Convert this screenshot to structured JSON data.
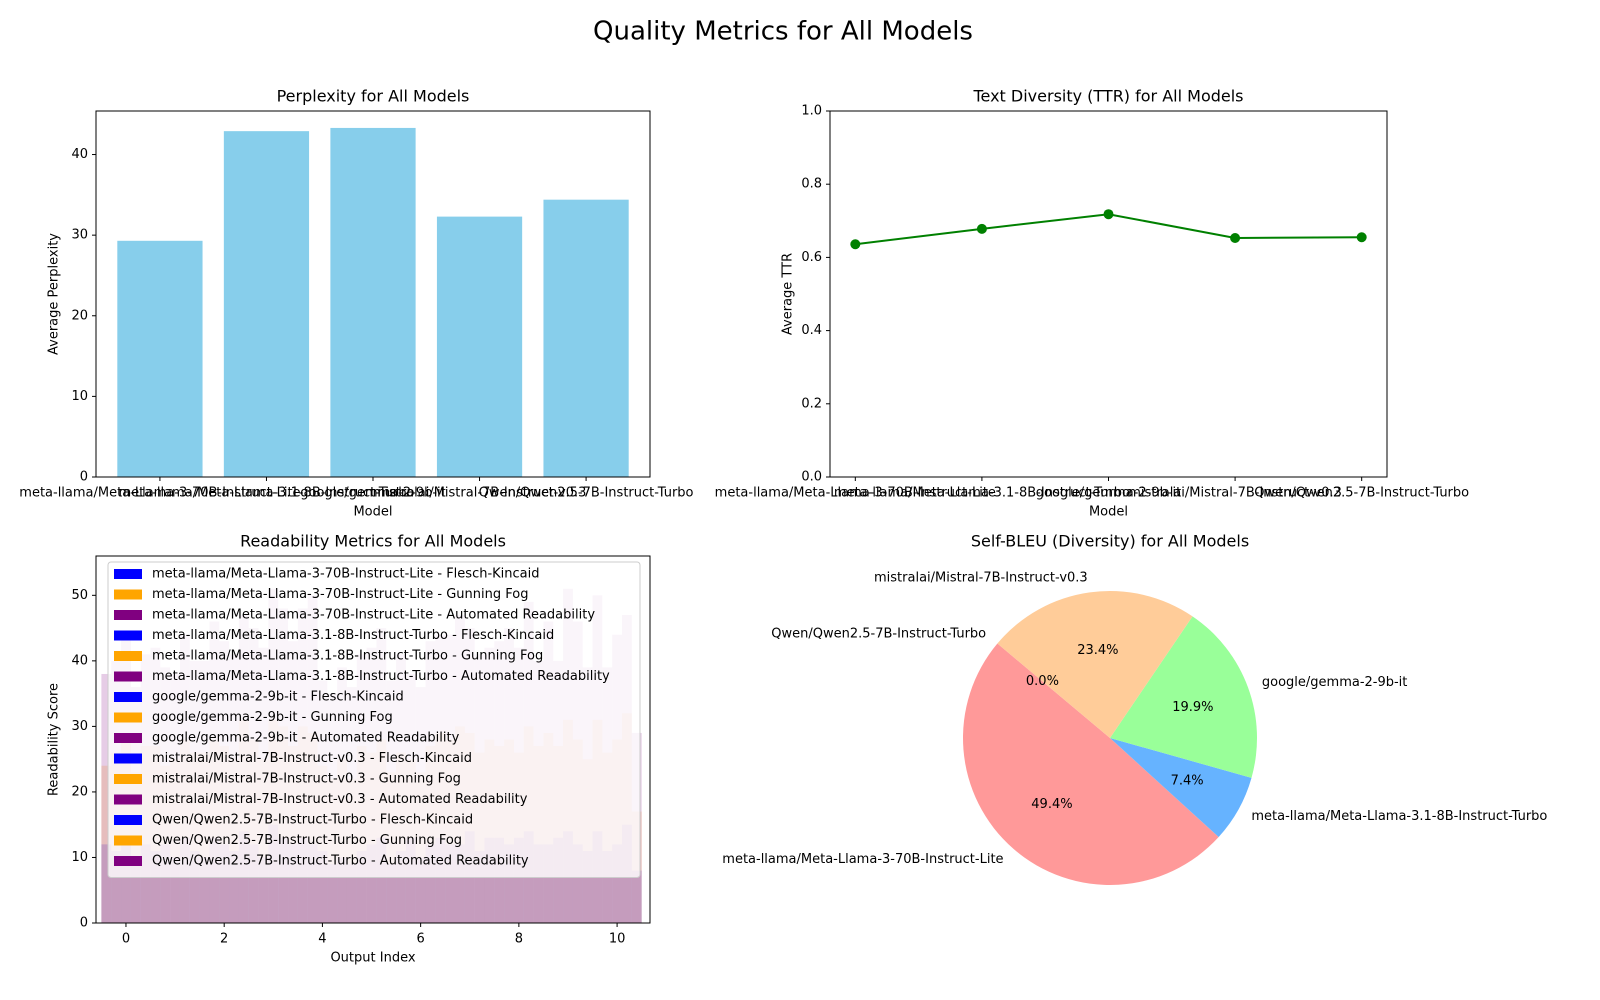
{
  "title": "Quality Metrics for All Models",
  "chart_data": [
    {
      "type": "bar",
      "title": "Perplexity for All Models",
      "xlabel": "Model",
      "ylabel": "Average Perplexity",
      "categories": [
        "meta-llama/Meta-Llama-3-70B-Instruct-Lite",
        "meta-llama/Meta-Llama-3.1-8B-Instruct-Turbo",
        "google/gemma-2-9b-it",
        "mistralai/Mistral-7B-Instruct-v0.3",
        "Qwen/Qwen2.5-7B-Instruct-Turbo"
      ],
      "values": [
        29.3,
        42.9,
        43.3,
        32.3,
        34.4
      ],
      "color": "#87ceeb",
      "ylim": [
        0,
        45.4
      ],
      "yticks": [
        0,
        10,
        20,
        30,
        40
      ]
    },
    {
      "type": "line",
      "title": "Text Diversity (TTR) for All Models",
      "xlabel": "Model",
      "ylabel": "Average TTR",
      "categories": [
        "meta-llama/Meta-Llama-3-70B-Instruct-Lite",
        "meta-llama/Meta-Llama-3.1-8B-Instruct-Turbo",
        "google/gemma-2-9b-it",
        "mistralai/Mistral-7B-Instruct-v0.3",
        "Qwen/Qwen2.5-7B-Instruct-Turbo"
      ],
      "values": [
        0.636,
        0.678,
        0.718,
        0.653,
        0.655
      ],
      "color": "#008000",
      "ylim": [
        0,
        1
      ],
      "yticks": [
        {
          "value": 0,
          "label": "0.0"
        },
        0.2,
        0.4,
        0.6,
        0.8,
        {
          "value": 1,
          "label": "1.0"
        }
      ]
    },
    {
      "type": "overlap-bar",
      "title": "Readability Metrics for All Models",
      "xlabel": "Output Index",
      "ylabel": "Readability Score",
      "x": [
        0,
        1,
        2,
        3,
        4,
        5,
        6,
        7,
        8,
        9,
        10
      ],
      "alpha": 0.2,
      "legend": "upper left",
      "xlim": [
        -0.61,
        10.67
      ],
      "xticks": [
        0,
        2,
        4,
        6,
        8,
        10
      ],
      "ylim": [
        0,
        56
      ],
      "yticks": [
        0,
        10,
        20,
        30,
        40,
        50
      ],
      "series": [
        {
          "name": "meta-llama/Meta-Llama-3-70B-Instruct-Lite - Flesch-Kincaid",
          "color": "#0000ff",
          "values": [
            12,
            11,
            10,
            12,
            13,
            9,
            11,
            12,
            13,
            12,
            14
          ]
        },
        {
          "name": "meta-llama/Meta-Llama-3-70B-Instruct-Lite - Gunning Fog",
          "color": "#ffa500",
          "values": [
            24,
            27,
            26,
            28,
            30,
            22,
            26,
            28,
            27,
            29,
            31
          ]
        },
        {
          "name": "meta-llama/Meta-Llama-3-70B-Instruct-Lite - Automated Readability",
          "color": "#800080",
          "values": [
            38,
            42,
            40,
            45,
            48,
            36,
            41,
            44,
            43,
            46,
            50
          ]
        },
        {
          "name": "meta-llama/Meta-Llama-3.1-8B-Instruct-Turbo - Flesch-Kincaid",
          "color": "#0000ff",
          "values": [
            11,
            12,
            13,
            10,
            12,
            11,
            13,
            12,
            12,
            13,
            11
          ]
        },
        {
          "name": "meta-llama/Meta-Llama-3.1-8B-Instruct-Turbo - Gunning Fog",
          "color": "#ffa500",
          "values": [
            26,
            24,
            28,
            25,
            29,
            27,
            25,
            30,
            28,
            27,
            26
          ]
        },
        {
          "name": "meta-llama/Meta-Llama-3.1-8B-Instruct-Turbo - Automated Readability",
          "color": "#800080",
          "values": [
            40,
            39,
            46,
            42,
            50,
            41,
            38,
            47,
            45,
            40,
            39
          ]
        },
        {
          "name": "google/gemma-2-9b-it - Flesch-Kincaid",
          "color": "#0000ff",
          "values": [
            13,
            10,
            12,
            15,
            11,
            12,
            10,
            14,
            13,
            14,
            12
          ]
        },
        {
          "name": "google/gemma-2-9b-it - Gunning Fog",
          "color": "#ffa500",
          "values": [
            29,
            25,
            27,
            31,
            24,
            26,
            23,
            29,
            26,
            31,
            28
          ]
        },
        {
          "name": "google/gemma-2-9b-it - Automated Readability",
          "color": "#800080",
          "values": [
            44,
            38,
            43,
            51,
            37,
            42,
            36,
            45,
            42,
            51,
            44
          ]
        },
        {
          "name": "mistralai/Mistral-7B-Instruct-v0.3 - Flesch-Kincaid",
          "color": "#0000ff",
          "values": [
            10,
            13,
            11,
            13,
            9,
            13,
            12,
            11,
            14,
            12,
            15
          ]
        },
        {
          "name": "mistralai/Mistral-7B-Instruct-v0.3 - Gunning Fog",
          "color": "#ffa500",
          "values": [
            23,
            28,
            25,
            30,
            22,
            28,
            27,
            26,
            30,
            28,
            32
          ]
        },
        {
          "name": "mistralai/Mistral-7B-Instruct-v0.3 - Automated Readability",
          "color": "#800080",
          "values": [
            36,
            44,
            41,
            48,
            35,
            45,
            43,
            41,
            49,
            46,
            47
          ]
        },
        {
          "name": "Qwen/Qwen2.5-7B-Instruct-Turbo - Flesch-Kincaid",
          "color": "#0000ff",
          "values": [
            12,
            11,
            14,
            12,
            10,
            9,
            13,
            13,
            12,
            11,
            8
          ]
        },
        {
          "name": "Qwen/Qwen2.5-7B-Instruct-Turbo - Gunning Fog",
          "color": "#ffa500",
          "values": [
            27,
            26,
            31,
            27,
            25,
            23,
            29,
            28,
            27,
            25,
            17
          ]
        },
        {
          "name": "Qwen/Qwen2.5-7B-Instruct-Turbo - Automated Readability",
          "color": "#800080",
          "values": [
            41,
            40,
            47,
            43,
            39,
            37,
            44,
            42,
            40,
            39,
            29
          ]
        }
      ]
    },
    {
      "type": "pie",
      "title": "Self-BLEU (Diversity) for All Models",
      "categories": [
        "meta-llama/Meta-Llama-3-70B-Instruct-Lite",
        "meta-llama/Meta-Llama-3.1-8B-Instruct-Turbo",
        "google/gemma-2-9b-it",
        "mistralai/Mistral-7B-Instruct-v0.3",
        "Qwen/Qwen2.5-7B-Instruct-Turbo"
      ],
      "values": [
        49.4,
        7.4,
        19.9,
        23.4,
        0
      ],
      "value_labels": [
        "49.4%",
        "7.4%",
        "19.9%",
        "23.4%",
        "0.0%"
      ],
      "colors": [
        "#ff9999",
        "#66b3ff",
        "#99ff99",
        "#ffcc99",
        "#c2c2f0"
      ],
      "startangle": 140
    }
  ]
}
